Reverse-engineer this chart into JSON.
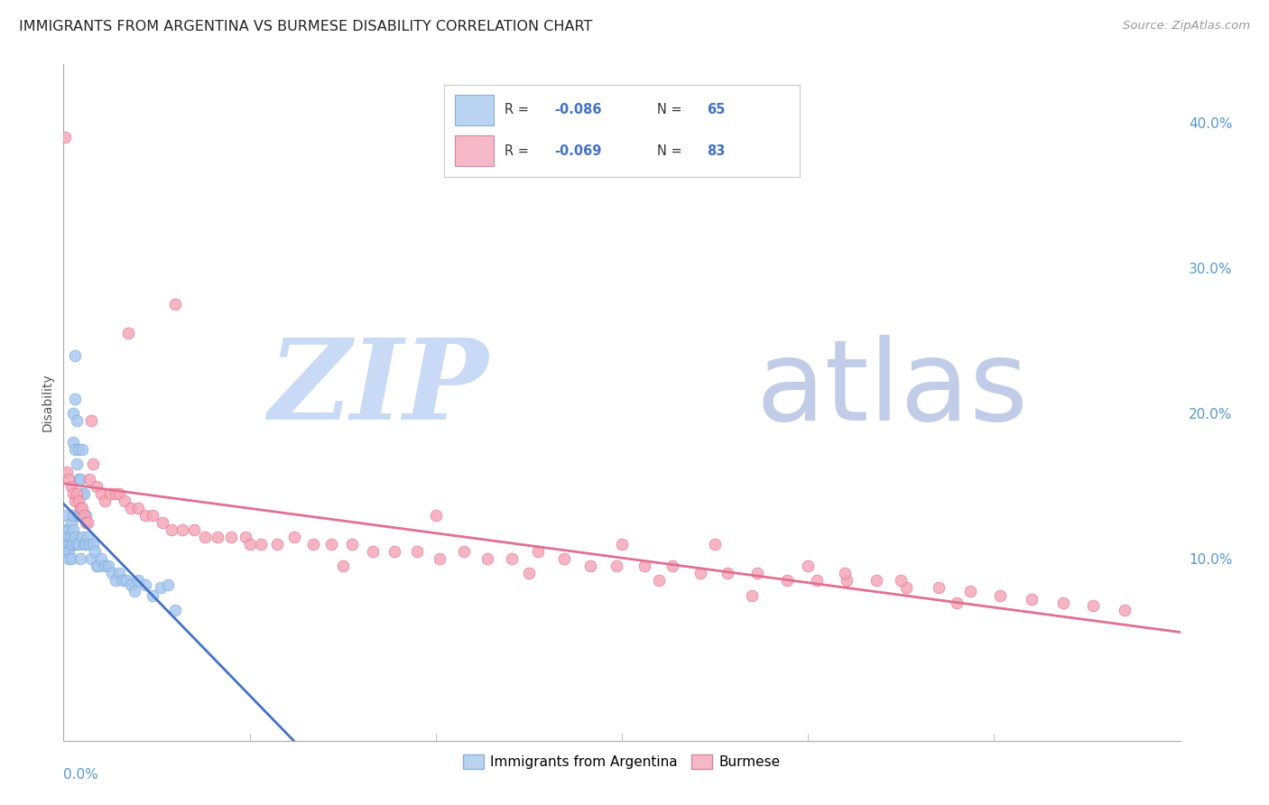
{
  "title": "IMMIGRANTS FROM ARGENTINA VS BURMESE DISABILITY CORRELATION CHART",
  "source": "Source: ZipAtlas.com",
  "ylabel": "Disability",
  "right_yticks": [
    0.1,
    0.2,
    0.3,
    0.4
  ],
  "right_yticklabels": [
    "10.0%",
    "20.0%",
    "30.0%",
    "40.0%"
  ],
  "xlim": [
    0.0,
    0.6
  ],
  "ylim": [
    -0.025,
    0.44
  ],
  "argentina": {
    "name": "Immigrants from Argentina",
    "R": -0.086,
    "N": 65,
    "color": "#a8c8f0",
    "edge_color": "#7aaad4",
    "trend_color": "#4472c4",
    "x": [
      0.001,
      0.001,
      0.001,
      0.002,
      0.002,
      0.002,
      0.002,
      0.003,
      0.003,
      0.003,
      0.003,
      0.003,
      0.004,
      0.004,
      0.004,
      0.004,
      0.005,
      0.005,
      0.005,
      0.005,
      0.005,
      0.006,
      0.006,
      0.006,
      0.006,
      0.007,
      0.007,
      0.007,
      0.008,
      0.008,
      0.008,
      0.008,
      0.009,
      0.009,
      0.009,
      0.01,
      0.01,
      0.01,
      0.011,
      0.011,
      0.012,
      0.012,
      0.013,
      0.014,
      0.015,
      0.016,
      0.017,
      0.018,
      0.019,
      0.02,
      0.022,
      0.024,
      0.026,
      0.028,
      0.03,
      0.032,
      0.034,
      0.036,
      0.038,
      0.04,
      0.044,
      0.048,
      0.052,
      0.056,
      0.06
    ],
    "y": [
      0.12,
      0.11,
      0.105,
      0.13,
      0.115,
      0.11,
      0.105,
      0.12,
      0.115,
      0.11,
      0.105,
      0.1,
      0.125,
      0.115,
      0.11,
      0.1,
      0.2,
      0.18,
      0.13,
      0.12,
      0.11,
      0.24,
      0.21,
      0.175,
      0.115,
      0.195,
      0.165,
      0.11,
      0.175,
      0.155,
      0.13,
      0.11,
      0.155,
      0.13,
      0.1,
      0.175,
      0.145,
      0.115,
      0.145,
      0.11,
      0.13,
      0.11,
      0.115,
      0.11,
      0.1,
      0.11,
      0.105,
      0.095,
      0.095,
      0.1,
      0.095,
      0.095,
      0.09,
      0.085,
      0.09,
      0.085,
      0.085,
      0.082,
      0.078,
      0.085,
      0.082,
      0.075,
      0.08,
      0.082,
      0.065
    ]
  },
  "burmese": {
    "name": "Burmese",
    "R": -0.069,
    "N": 83,
    "color": "#f5a8b8",
    "edge_color": "#e07090",
    "trend_color": "#e07090",
    "x": [
      0.001,
      0.002,
      0.003,
      0.004,
      0.005,
      0.006,
      0.007,
      0.008,
      0.009,
      0.01,
      0.011,
      0.012,
      0.013,
      0.014,
      0.015,
      0.016,
      0.018,
      0.02,
      0.022,
      0.025,
      0.028,
      0.03,
      0.033,
      0.036,
      0.04,
      0.044,
      0.048,
      0.053,
      0.058,
      0.064,
      0.07,
      0.076,
      0.083,
      0.09,
      0.098,
      0.106,
      0.115,
      0.124,
      0.134,
      0.144,
      0.155,
      0.166,
      0.178,
      0.19,
      0.202,
      0.215,
      0.228,
      0.241,
      0.255,
      0.269,
      0.283,
      0.297,
      0.312,
      0.327,
      0.342,
      0.357,
      0.373,
      0.389,
      0.405,
      0.421,
      0.437,
      0.453,
      0.47,
      0.487,
      0.503,
      0.52,
      0.537,
      0.553,
      0.57,
      0.3,
      0.35,
      0.4,
      0.45,
      0.15,
      0.2,
      0.25,
      0.32,
      0.37,
      0.42,
      0.48,
      0.1,
      0.06,
      0.035
    ],
    "y": [
      0.39,
      0.16,
      0.155,
      0.15,
      0.145,
      0.14,
      0.145,
      0.14,
      0.135,
      0.135,
      0.13,
      0.125,
      0.125,
      0.155,
      0.195,
      0.165,
      0.15,
      0.145,
      0.14,
      0.145,
      0.145,
      0.145,
      0.14,
      0.135,
      0.135,
      0.13,
      0.13,
      0.125,
      0.12,
      0.12,
      0.12,
      0.115,
      0.115,
      0.115,
      0.115,
      0.11,
      0.11,
      0.115,
      0.11,
      0.11,
      0.11,
      0.105,
      0.105,
      0.105,
      0.1,
      0.105,
      0.1,
      0.1,
      0.105,
      0.1,
      0.095,
      0.095,
      0.095,
      0.095,
      0.09,
      0.09,
      0.09,
      0.085,
      0.085,
      0.085,
      0.085,
      0.08,
      0.08,
      0.078,
      0.075,
      0.072,
      0.07,
      0.068,
      0.065,
      0.11,
      0.11,
      0.095,
      0.085,
      0.095,
      0.13,
      0.09,
      0.085,
      0.075,
      0.09,
      0.07,
      0.11,
      0.275,
      0.255
    ]
  },
  "legend_box_colors": [
    "#b8d4f0",
    "#f5b8c8"
  ],
  "legend_text_color": "#4472c4",
  "watermark_zip": "ZIP",
  "watermark_atlas": "atlas",
  "watermark_color_zip": "#c8daf5",
  "watermark_color_atlas": "#c0cce8",
  "background_color": "#ffffff",
  "grid_color": "#cccccc",
  "axis_label_color": "#5599cc",
  "title_fontsize": 11.5,
  "source_fontsize": 9.5
}
